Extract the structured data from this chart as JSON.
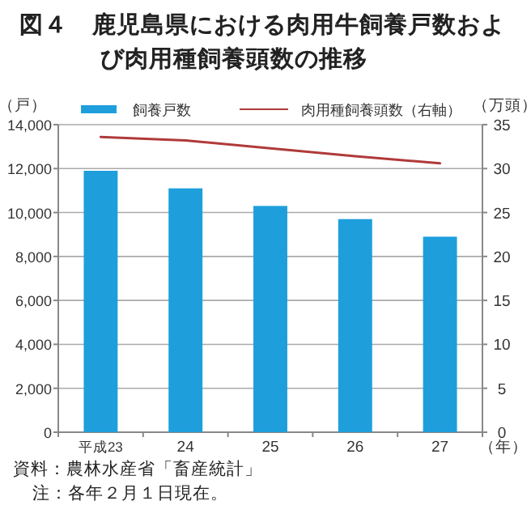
{
  "chart_data": {
    "type": "bar",
    "title": "図４　鹿児島県における肉用牛飼養戸数および肉用種飼養頭数の推移",
    "categories": [
      "平成23",
      "24",
      "25",
      "26",
      "27"
    ],
    "series": [
      {
        "name": "飼養戸数",
        "color": "#1e9fdc",
        "values": [
          11900,
          11100,
          10300,
          9700,
          8900
        ]
      },
      {
        "name": "肉用種飼養頭数（右軸）",
        "type": "line",
        "axis": "y2",
        "color": "#b03a3a",
        "values": [
          33.6,
          33.2,
          32.3,
          31.4,
          30.6
        ]
      }
    ],
    "ylabel": "（戸）",
    "y2label": "（万頭）",
    "xlabel": "（年）",
    "ylim": [
      0,
      14000
    ],
    "yticks": [
      {
        "value": 0,
        "label": "0"
      },
      {
        "value": 2000,
        "label": "2,000"
      },
      {
        "value": 4000,
        "label": "4,000"
      },
      {
        "value": 6000,
        "label": "6,000"
      },
      {
        "value": 8000,
        "label": "8,000"
      },
      {
        "value": 10000,
        "label": "10,000"
      },
      {
        "value": 12000,
        "label": "12,000"
      },
      {
        "value": 14000,
        "label": "14,000"
      }
    ],
    "y2lim": [
      0,
      35
    ],
    "y2ticks": [
      0,
      5,
      10,
      15,
      20,
      25,
      30,
      35
    ],
    "grid": "y",
    "legend": "top",
    "annotations": [
      "資料：農林水産省「畜産統計」",
      "注：各年２月１日現在。"
    ]
  }
}
